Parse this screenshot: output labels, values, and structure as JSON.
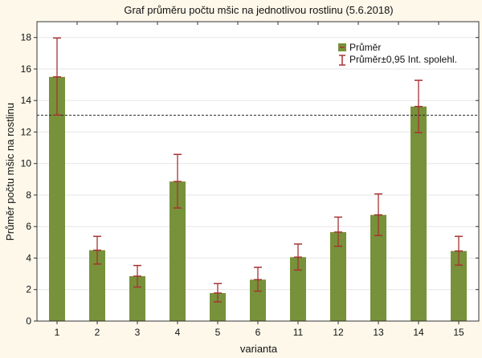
{
  "chart_data": {
    "type": "bar",
    "title": "Graf průměru počtu mšic na jednotlivou rostlinu (5.6.2018)",
    "xlabel": "varianta",
    "ylabel": "Průměr počtu mšic na rostlinu",
    "ylim": [
      0,
      18
    ],
    "yticks": [
      0,
      2,
      4,
      6,
      8,
      10,
      12,
      14,
      16,
      18
    ],
    "grid": true,
    "legend_position": "top-right",
    "categories": [
      "1",
      "2",
      "3",
      "4",
      "5",
      "6",
      "11",
      "12",
      "13",
      "14",
      "15"
    ],
    "series": [
      {
        "name": "Průměr",
        "values": [
          15.5,
          4.5,
          2.85,
          8.86,
          1.78,
          2.63,
          4.06,
          5.65,
          6.74,
          13.62,
          4.45
        ]
      }
    ],
    "error_bars": {
      "name": "Průměr±0,95 Int. spolehl.",
      "lower": [
        13.08,
        3.62,
        2.16,
        7.18,
        1.22,
        1.9,
        3.24,
        4.75,
        5.43,
        11.96,
        3.55
      ],
      "upper": [
        17.97,
        5.38,
        3.53,
        10.58,
        2.38,
        3.41,
        4.89,
        6.6,
        8.07,
        15.28,
        5.38
      ]
    },
    "reference_line": 13.06,
    "colors": {
      "bar": "#77923a",
      "error": "#a83232",
      "background": "#fdf8ea"
    }
  }
}
